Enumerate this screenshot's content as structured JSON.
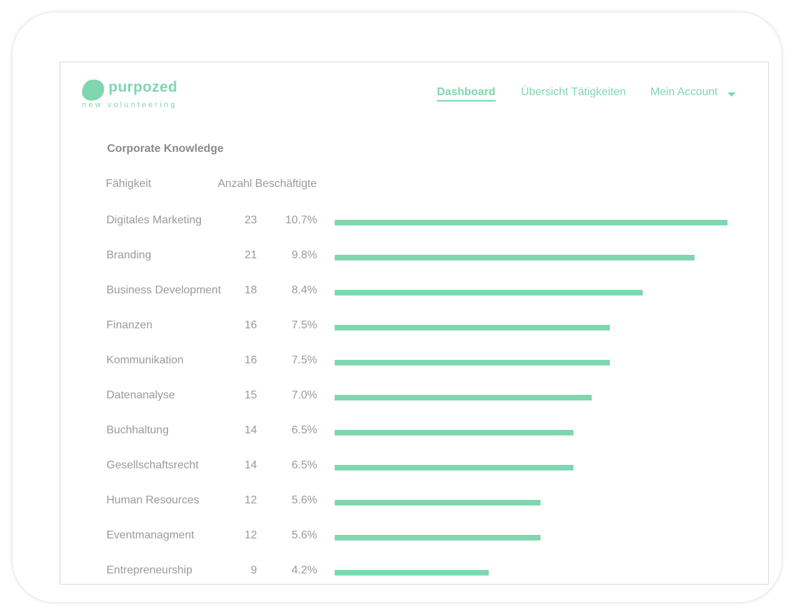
{
  "brand": {
    "name": "purpozed",
    "tagline": "new volunteering",
    "accent": "#7fd6b0"
  },
  "nav": {
    "dashboard": "Dashboard",
    "overview": "Übersicht Tätigkeiten",
    "account": "Mein Account",
    "account_icon": "chevron-down-icon"
  },
  "section": {
    "title": "Corporate Knowledge",
    "col_skill": "Fähigkeit",
    "col_count": "Anzahl Beschäftigte"
  },
  "chart_data": {
    "type": "bar",
    "orientation": "horizontal",
    "title": "Corporate Knowledge",
    "categories": [
      "Digitales Marketing",
      "Branding",
      "Business Development",
      "Finanzen",
      "Kommunikation",
      "Datenanalyse",
      "Buchhaltung",
      "Gesellschaftsrecht",
      "Human Resources",
      "Eventmanagment",
      "Entrepreneurship"
    ],
    "counts": [
      "23",
      "21",
      "18",
      "16",
      "16",
      "15",
      "14",
      "14",
      "12",
      "12",
      "9"
    ],
    "percents": [
      "10.7%",
      "9.8%",
      "8.4%",
      "7.5%",
      "7.5%",
      "7.0%",
      "6.5%",
      "6.5%",
      "5.6%",
      "5.6%",
      "4.2%"
    ],
    "values": [
      10.7,
      9.8,
      8.4,
      7.5,
      7.5,
      7.0,
      6.5,
      6.5,
      5.6,
      5.6,
      4.2
    ],
    "bar_color": "#7fd6b0"
  }
}
